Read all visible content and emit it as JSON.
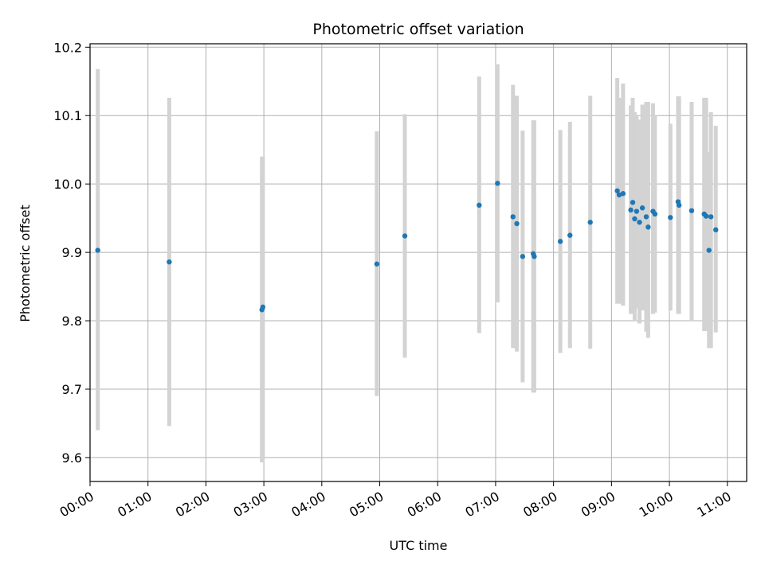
{
  "chart_data": {
    "type": "scatter",
    "title": "Photometric offset variation",
    "xlabel": "UTC time",
    "ylabel": "Photometric offset",
    "x_unit": "hours UTC",
    "xlim": [
      "00:00",
      "11:20"
    ],
    "ylim": [
      9.565,
      10.205
    ],
    "x_ticks": [
      "00:00",
      "01:00",
      "02:00",
      "03:00",
      "04:00",
      "05:00",
      "06:00",
      "07:00",
      "08:00",
      "09:00",
      "10:00",
      "11:00"
    ],
    "y_ticks": [
      "9.6",
      "9.7",
      "9.8",
      "9.9",
      "10.0",
      "10.1",
      "10.2"
    ],
    "grid": true,
    "marker_color": "#1f77b4",
    "errorbar_color": "#d3d3d3",
    "points": [
      {
        "x": "00:08",
        "y": 9.903,
        "lo": 9.64,
        "hi": 10.168
      },
      {
        "x": "01:22",
        "y": 9.886,
        "lo": 9.646,
        "hi": 10.126
      },
      {
        "x": "02:58",
        "y": 9.816,
        "lo": 9.593,
        "hi": 10.04
      },
      {
        "x": "02:59",
        "y": 9.82,
        "lo": 9.598,
        "hi": 10.04
      },
      {
        "x": "04:57",
        "y": 9.883,
        "lo": 9.69,
        "hi": 10.077
      },
      {
        "x": "05:26",
        "y": 9.924,
        "lo": 9.746,
        "hi": 10.102
      },
      {
        "x": "06:43",
        "y": 9.969,
        "lo": 9.782,
        "hi": 10.157
      },
      {
        "x": "07:02",
        "y": 10.001,
        "lo": 9.827,
        "hi": 10.175
      },
      {
        "x": "07:18",
        "y": 9.952,
        "lo": 9.76,
        "hi": 10.145
      },
      {
        "x": "07:22",
        "y": 9.942,
        "lo": 9.755,
        "hi": 10.129
      },
      {
        "x": "07:28",
        "y": 9.894,
        "lo": 9.71,
        "hi": 10.078
      },
      {
        "x": "07:39",
        "y": 9.898,
        "lo": 9.695,
        "hi": 10.093
      },
      {
        "x": "07:40",
        "y": 9.894,
        "lo": 9.695,
        "hi": 10.093
      },
      {
        "x": "08:07",
        "y": 9.916,
        "lo": 9.753,
        "hi": 10.079
      },
      {
        "x": "08:17",
        "y": 9.925,
        "lo": 9.76,
        "hi": 10.091
      },
      {
        "x": "08:38",
        "y": 9.944,
        "lo": 9.759,
        "hi": 10.129
      },
      {
        "x": "09:06",
        "y": 9.99,
        "lo": 9.825,
        "hi": 10.155
      },
      {
        "x": "09:08",
        "y": 9.984,
        "lo": 9.825,
        "hi": 10.126
      },
      {
        "x": "09:12",
        "y": 9.986,
        "lo": 9.822,
        "hi": 10.147
      },
      {
        "x": "09:20",
        "y": 9.962,
        "lo": 9.81,
        "hi": 10.115
      },
      {
        "x": "09:22",
        "y": 9.973,
        "lo": 9.82,
        "hi": 10.126
      },
      {
        "x": "09:24",
        "y": 9.949,
        "lo": 9.8,
        "hi": 10.105
      },
      {
        "x": "09:26",
        "y": 9.96,
        "lo": 9.818,
        "hi": 10.1
      },
      {
        "x": "09:29",
        "y": 9.944,
        "lo": 9.796,
        "hi": 10.094
      },
      {
        "x": "09:32",
        "y": 9.965,
        "lo": 9.815,
        "hi": 10.116
      },
      {
        "x": "09:36",
        "y": 9.952,
        "lo": 9.784,
        "hi": 10.12
      },
      {
        "x": "09:38",
        "y": 9.937,
        "lo": 9.775,
        "hi": 10.12
      },
      {
        "x": "09:43",
        "y": 9.96,
        "lo": 9.81,
        "hi": 10.118
      },
      {
        "x": "09:45",
        "y": 9.956,
        "lo": 9.812,
        "hi": 10.1
      },
      {
        "x": "10:01",
        "y": 9.951,
        "lo": 9.815,
        "hi": 10.088
      },
      {
        "x": "10:09",
        "y": 9.974,
        "lo": 9.81,
        "hi": 10.128
      },
      {
        "x": "10:10",
        "y": 9.969,
        "lo": 9.81,
        "hi": 10.128
      },
      {
        "x": "10:23",
        "y": 9.961,
        "lo": 9.8,
        "hi": 10.12
      },
      {
        "x": "10:36",
        "y": 9.956,
        "lo": 9.785,
        "hi": 10.126
      },
      {
        "x": "10:38",
        "y": 9.953,
        "lo": 9.785,
        "hi": 10.126
      },
      {
        "x": "10:41",
        "y": 9.903,
        "lo": 9.76,
        "hi": 10.047
      },
      {
        "x": "10:43",
        "y": 9.952,
        "lo": 9.76,
        "hi": 10.105
      },
      {
        "x": "10:48",
        "y": 9.933,
        "lo": 9.783,
        "hi": 10.085
      }
    ]
  }
}
